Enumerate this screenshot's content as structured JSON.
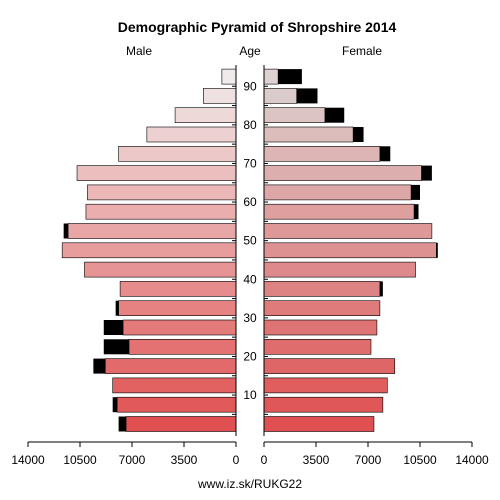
{
  "chart_data": {
    "type": "population-pyramid",
    "title": "Demographic Pyramid of Shropshire 2014",
    "left_label": "Male",
    "center_label": "Age",
    "right_label": "Female",
    "source": "www.iz.sk/RUKG22",
    "x_ticks_left": [
      "14000",
      "10500",
      "7000",
      "3500",
      "0"
    ],
    "x_ticks_right": [
      "0",
      "3500",
      "7000",
      "10500",
      "14000"
    ],
    "x_tick_values": [
      14000,
      10500,
      7000,
      3500,
      0
    ],
    "xlim": [
      0,
      14000
    ],
    "age_ticks": [
      10,
      20,
      30,
      40,
      50,
      60,
      70,
      80,
      90
    ],
    "age_groups": [
      2,
      7,
      12,
      17,
      22,
      27,
      32,
      37,
      42,
      47,
      52,
      57,
      62,
      67,
      72,
      77,
      82,
      87,
      92
    ],
    "series": [
      {
        "name": "Male",
        "values": [
          7400,
          8000,
          8300,
          8800,
          7200,
          7600,
          7900,
          7800,
          10200,
          11700,
          11300,
          10100,
          10000,
          10700,
          7900,
          6000,
          4100,
          2200,
          950
        ],
        "excess": [
          500,
          300,
          0,
          800,
          1700,
          1300,
          200,
          0,
          0,
          0,
          300,
          0,
          0,
          0,
          0,
          0,
          0,
          0,
          0
        ]
      },
      {
        "name": "Female",
        "values": [
          7400,
          8000,
          8300,
          8800,
          7200,
          7600,
          7800,
          7800,
          10200,
          11600,
          11300,
          10100,
          9900,
          10600,
          7800,
          6000,
          4100,
          2200,
          950
        ],
        "excess": [
          0,
          0,
          0,
          0,
          0,
          0,
          0,
          200,
          0,
          100,
          0,
          300,
          600,
          700,
          700,
          700,
          1300,
          1400,
          1600
        ]
      }
    ],
    "colors": {
      "male_young": "#e05050",
      "male_old": "#f0eaea",
      "female_young": "#e05050",
      "female_old": "#dcd2d2",
      "excess": "#000000",
      "axis": "#000000"
    }
  }
}
